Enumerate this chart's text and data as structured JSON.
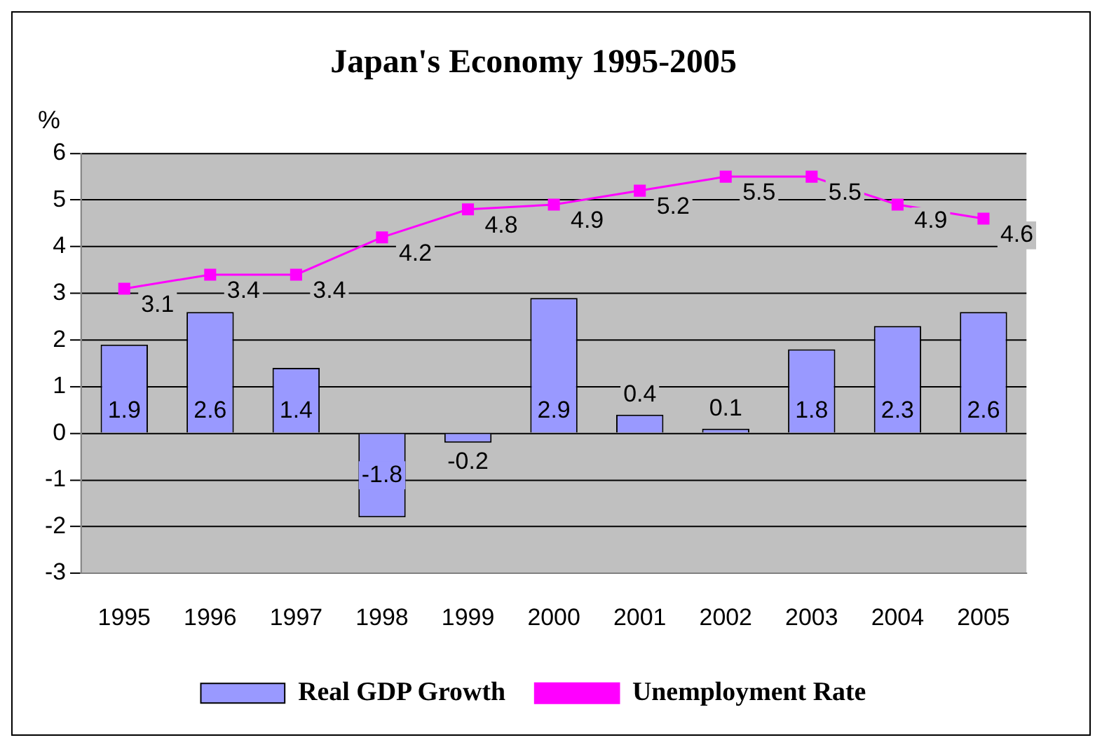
{
  "chart_data": {
    "type": "bar",
    "title": "Japan's Economy 1995-2005",
    "ylabel": "%",
    "categories": [
      "1995",
      "1996",
      "1997",
      "1998",
      "1999",
      "2000",
      "2001",
      "2002",
      "2003",
      "2004",
      "2005"
    ],
    "series": [
      {
        "name": "Real GDP Growth",
        "color": "#9999ff",
        "values": [
          1.9,
          2.6,
          1.4,
          -1.8,
          -0.2,
          2.9,
          0.4,
          0.1,
          1.8,
          2.3,
          2.6
        ]
      },
      {
        "name": "Unemployment Rate",
        "type": "line",
        "color": "#ff00ff",
        "values": [
          3.1,
          3.4,
          3.4,
          4.2,
          4.8,
          4.9,
          5.2,
          5.5,
          5.5,
          4.9,
          4.6
        ]
      }
    ],
    "ylim": [
      -3,
      6
    ],
    "yticks": [
      -3,
      -2,
      -1,
      0,
      1,
      2,
      3,
      4,
      5,
      6
    ],
    "grid": "y",
    "legend": "bottom",
    "marker": "square",
    "data_labels": true
  }
}
